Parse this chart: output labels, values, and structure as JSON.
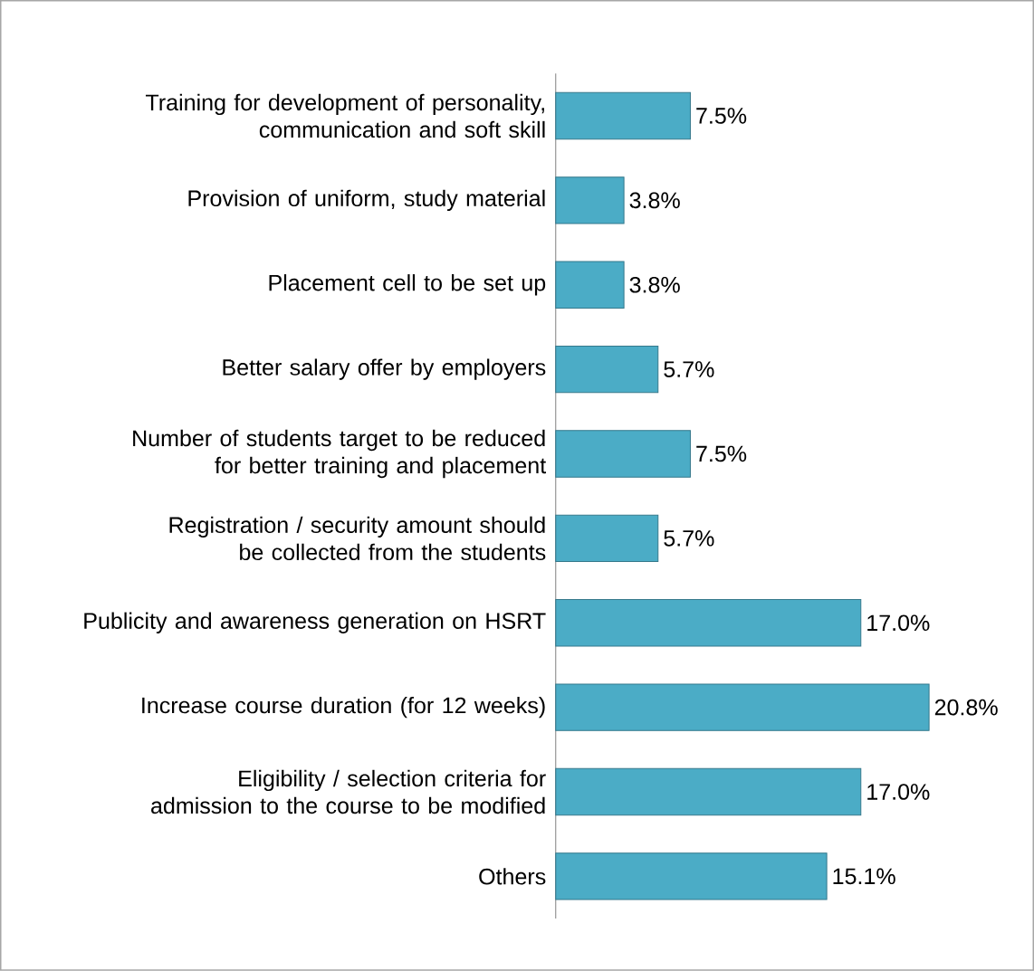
{
  "chart_data": {
    "type": "bar",
    "orientation": "horizontal",
    "color": "#4bacc6",
    "categories": [
      "Training for development of personality, communication and soft skill",
      "Provision of uniform, study material",
      "Placement cell to be set up",
      "Better salary offer by employers",
      "Number of students target to be reduced for better training and placement",
      "Registration / security amount should be collected from the students",
      "Publicity and awareness generation on HSRT",
      "Increase course duration (for 12 weeks)",
      "Eligibility / selection criteria for admission to the course to be modified",
      "Others"
    ],
    "values": [
      7.5,
      3.8,
      3.8,
      5.7,
      7.5,
      5.7,
      17.0,
      20.8,
      17.0,
      15.1
    ],
    "value_labels": [
      "7.5%",
      "3.8%",
      "3.8%",
      "5.7%",
      "7.5%",
      "5.7%",
      "17.0%",
      "20.8%",
      "17.0%",
      "15.1%"
    ],
    "tick_labels": "y"
  }
}
